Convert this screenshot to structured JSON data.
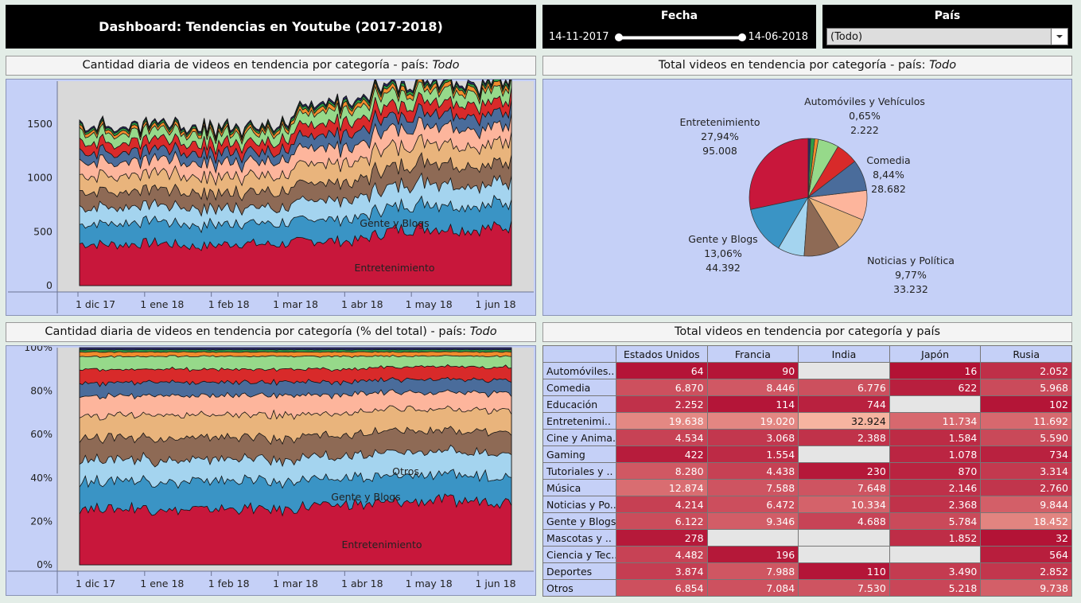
{
  "header": {
    "title": "Dashboard: Tendencias en Youtube (2017-2018)"
  },
  "filters": {
    "date_label": "Fecha",
    "date_start": "14-11-2017",
    "date_end": "14-06-2018",
    "country_label": "País",
    "country_value": "(Todo)"
  },
  "panels": {
    "area_title": "Cantidad diaria de videos en tendencia por categoría - país: ",
    "area_pct_title": "Cantidad diaria de videos en tendencia por categoría (% del total) - país: ",
    "pie_title": "Total videos en tendencia por categoría - país: ",
    "country_suffix": "Todo",
    "table_title": "Total videos en tendencia por categoría y país"
  },
  "colors": {
    "series": [
      "#c8173b",
      "#3a94c5",
      "#a4d4ef",
      "#8e6a55",
      "#e9b47c",
      "#fdb59c",
      "#4a6c9b",
      "#d82a2a",
      "#96d98a",
      "#f08c2c",
      "#2f9e46",
      "#2a2a66"
    ],
    "chart_bg": "#d9d9d9",
    "panel_bg": "#c5d0f7"
  },
  "chart_data": [
    {
      "type": "area",
      "stacked": true,
      "x_ticks": [
        "1 dic 17",
        "1 ene 18",
        "1 feb 18",
        "1 mar 18",
        "1 abr 18",
        "1 may 18",
        "1 jun 18"
      ],
      "y_ticks": [
        "0",
        "500",
        "1000",
        "1500"
      ],
      "ylim": [
        0,
        1900
      ],
      "annotations": [
        "Gente y Blogs",
        "Entretenimiento"
      ],
      "series": [
        {
          "name": "Entretenimiento",
          "values": [
            390,
            380,
            400,
            360,
            395,
            380,
            420,
            410,
            520,
            540,
            520,
            550
          ]
        },
        {
          "name": "Gente y Blogs",
          "values": [
            200,
            190,
            200,
            190,
            200,
            190,
            210,
            210,
            220,
            230,
            220,
            220
          ]
        },
        {
          "values": [
            160,
            150,
            160,
            150,
            150,
            150,
            180,
            180,
            200,
            200,
            190,
            200
          ]
        },
        {
          "values": [
            150,
            150,
            150,
            140,
            140,
            140,
            170,
            170,
            180,
            180,
            180,
            180
          ]
        },
        {
          "values": [
            150,
            150,
            160,
            150,
            150,
            150,
            180,
            180,
            190,
            190,
            190,
            190
          ]
        },
        {
          "values": [
            130,
            130,
            130,
            130,
            130,
            130,
            150,
            150,
            160,
            160,
            160,
            160
          ]
        },
        {
          "values": [
            90,
            90,
            90,
            90,
            90,
            90,
            120,
            120,
            120,
            120,
            120,
            120
          ]
        },
        {
          "values": [
            90,
            90,
            90,
            90,
            90,
            90,
            110,
            110,
            110,
            110,
            110,
            110
          ]
        },
        {
          "values": [
            90,
            90,
            90,
            90,
            90,
            90,
            110,
            110,
            110,
            110,
            110,
            110
          ]
        },
        {
          "values": [
            30,
            30,
            30,
            30,
            30,
            30,
            40,
            40,
            40,
            40,
            40,
            40
          ]
        },
        {
          "values": [
            20,
            20,
            20,
            20,
            20,
            20,
            25,
            25,
            25,
            25,
            25,
            25
          ]
        },
        {
          "values": [
            15,
            15,
            15,
            15,
            15,
            15,
            20,
            20,
            20,
            20,
            20,
            20
          ]
        }
      ]
    },
    {
      "type": "area",
      "stacked": true,
      "percent": true,
      "x_ticks": [
        "1 dic 17",
        "1 ene 18",
        "1 feb 18",
        "1 mar 18",
        "1 abr 18",
        "1 may 18",
        "1 jun 18"
      ],
      "y_ticks": [
        "0%",
        "20%",
        "40%",
        "60%",
        "80%",
        "100%"
      ],
      "ylim": [
        0,
        100
      ],
      "annotations": [
        "Otros",
        "Gente y Blogs",
        "Entretenimiento"
      ],
      "series": [
        {
          "name": "Entretenimiento",
          "values": [
            26,
            26,
            26,
            25,
            26,
            25,
            27,
            28,
            29,
            30,
            30,
            30
          ]
        },
        {
          "name": "Gente y Blogs",
          "values": [
            13,
            13,
            13,
            13,
            13,
            13,
            12,
            12,
            12,
            12,
            12,
            12
          ]
        },
        {
          "name": "Otros",
          "values": [
            10,
            10,
            10,
            10,
            10,
            10,
            10,
            10,
            11,
            11,
            11,
            11
          ]
        },
        {
          "values": [
            10,
            10,
            10,
            10,
            10,
            10,
            10,
            10,
            10,
            10,
            10,
            10
          ]
        },
        {
          "values": [
            10,
            10,
            11,
            10,
            10,
            11,
            10,
            10,
            10,
            10,
            10,
            10
          ]
        },
        {
          "values": [
            9,
            9,
            9,
            9,
            9,
            9,
            9,
            9,
            8,
            8,
            8,
            8
          ]
        },
        {
          "values": [
            6,
            6,
            6,
            6,
            6,
            6,
            6,
            6,
            6,
            6,
            6,
            6
          ]
        },
        {
          "values": [
            6,
            6,
            6,
            6,
            6,
            6,
            6,
            6,
            6,
            6,
            6,
            6
          ]
        },
        {
          "values": [
            6,
            6,
            6,
            6,
            6,
            6,
            6,
            6,
            5,
            5,
            5,
            5
          ]
        },
        {
          "values": [
            2,
            2,
            2,
            2,
            2,
            2,
            2,
            2,
            2,
            2,
            2,
            2
          ]
        },
        {
          "values": [
            1,
            1,
            1,
            1,
            1,
            1,
            1,
            1,
            1,
            1,
            1,
            1
          ]
        },
        {
          "values": [
            1,
            1,
            1,
            1,
            1,
            1,
            1,
            1,
            1,
            1,
            1,
            1
          ]
        }
      ]
    },
    {
      "type": "pie",
      "slices": [
        {
          "name": "Entretenimiento",
          "pct": 27.94,
          "value": 95008
        },
        {
          "name": "Gente y Blogs",
          "pct": 13.06,
          "value": 44392
        },
        {
          "name": "Cine y Animación",
          "pct": 7.2
        },
        {
          "name": "Noticias y Política",
          "pct": 9.77,
          "value": 33232
        },
        {
          "name": "Música",
          "pct": 9.8
        },
        {
          "name": "Tutoriales",
          "pct": 8.0
        },
        {
          "name": "Comedia",
          "pct": 8.44,
          "value": 28682
        },
        {
          "name": "Deportes",
          "pct": 6.0
        },
        {
          "name": "Otros",
          "pct": 5.6
        },
        {
          "name": "Educación",
          "pct": 1.0
        },
        {
          "name": "Gaming",
          "pct": 1.1
        },
        {
          "name": "Automóviles y Vehículos",
          "pct": 0.65,
          "value": 2222
        }
      ],
      "labels": [
        {
          "name": "Entretenimiento",
          "pct": "27,94%",
          "value": "95.008"
        },
        {
          "name": "Automóviles y Vehículos",
          "pct": "0,65%",
          "value": "2.222"
        },
        {
          "name": "Comedia",
          "pct": "8,44%",
          "value": "28.682"
        },
        {
          "name": "Gente y Blogs",
          "pct": "13,06%",
          "value": "44.392"
        },
        {
          "name": "Noticias y Política",
          "pct": "9,77%",
          "value": "33.232"
        }
      ]
    },
    {
      "type": "table",
      "columns": [
        "Estados Unidos",
        "Francia",
        "India",
        "Japón",
        "Rusia"
      ],
      "rows": [
        {
          "label": "Automóviles..",
          "values": [
            "64",
            "90",
            "",
            "16",
            "2.052"
          ]
        },
        {
          "label": "Comedia",
          "values": [
            "6.870",
            "8.446",
            "6.776",
            "622",
            "5.968"
          ]
        },
        {
          "label": "Educación",
          "values": [
            "2.252",
            "114",
            "744",
            "",
            "102"
          ]
        },
        {
          "label": "Entretenimi..",
          "values": [
            "19.638",
            "19.020",
            "32.924",
            "11.734",
            "11.692"
          ]
        },
        {
          "label": "Cine y Anima..",
          "values": [
            "4.534",
            "3.068",
            "2.388",
            "1.584",
            "5.590"
          ]
        },
        {
          "label": "Gaming",
          "values": [
            "422",
            "1.554",
            "",
            "1.078",
            "734"
          ]
        },
        {
          "label": "Tutoriales y ..",
          "values": [
            "8.280",
            "4.438",
            "230",
            "870",
            "3.314"
          ]
        },
        {
          "label": "Música",
          "values": [
            "12.874",
            "7.588",
            "7.648",
            "2.146",
            "2.760"
          ]
        },
        {
          "label": "Noticias y Po..",
          "values": [
            "4.214",
            "6.472",
            "10.334",
            "2.368",
            "9.844"
          ]
        },
        {
          "label": "Gente y Blogs",
          "values": [
            "6.122",
            "9.346",
            "4.688",
            "5.784",
            "18.452"
          ]
        },
        {
          "label": "Mascotas y ..",
          "values": [
            "278",
            "",
            "",
            "1.852",
            "32"
          ]
        },
        {
          "label": "Ciencia y Tec..",
          "values": [
            "4.482",
            "196",
            "",
            "",
            "564"
          ]
        },
        {
          "label": "Deportes",
          "values": [
            "3.874",
            "7.988",
            "110",
            "3.490",
            "2.852"
          ]
        },
        {
          "label": "Otros",
          "values": [
            "6.854",
            "7.084",
            "7.530",
            "5.218",
            "9.738"
          ]
        }
      ]
    }
  ]
}
